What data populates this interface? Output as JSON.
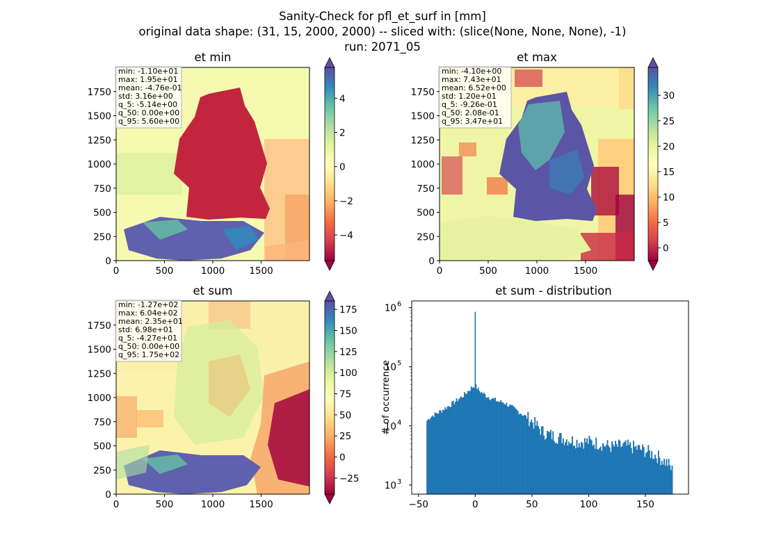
{
  "figure": {
    "title_lines": [
      "Sanity-Check for pfl_et_surf in [mm]",
      "original data shape: (31, 15, 2000, 2000) -- sliced with: (slice(None, None, None), -1)",
      "run: 2071_05"
    ]
  },
  "chart_data": [
    {
      "type": "heatmap",
      "title": "et min",
      "xlim": [
        0,
        2000
      ],
      "ylim": [
        0,
        2000
      ],
      "xticks": [
        0,
        500,
        1000,
        1500
      ],
      "yticks": [
        0,
        250,
        500,
        750,
        1000,
        1250,
        1500,
        1750
      ],
      "colormap": "Spectral",
      "colorbar": {
        "vmin": -5.5,
        "vmax": 5.8,
        "ticks": [
          -4,
          -2,
          0,
          2,
          4
        ],
        "tick_labels": [
          "−4",
          "−2",
          "0",
          "2",
          "4"
        ],
        "extend": "both"
      },
      "stats": [
        "min: -1.10e+01",
        "max: 1.95e+01",
        "mean: -4.76e-01",
        "std: 3.16e+00",
        "q_5: -5.14e+00",
        "q_50: 0.00e+00",
        "q_95: 5.60e+00"
      ]
    },
    {
      "type": "heatmap",
      "title": "et max",
      "xlim": [
        0,
        2000
      ],
      "ylim": [
        0,
        2000
      ],
      "xticks": [
        0,
        500,
        1000,
        1500
      ],
      "yticks": [
        0,
        250,
        500,
        750,
        1000,
        1250,
        1500,
        1750
      ],
      "colormap": "Spectral",
      "colorbar": {
        "vmin": -2.5,
        "vmax": 35.5,
        "ticks": [
          0,
          5,
          10,
          15,
          20,
          25,
          30
        ],
        "tick_labels": [
          "0",
          "5",
          "10",
          "15",
          "20",
          "25",
          "30"
        ],
        "extend": "both"
      },
      "stats": [
        "min: -4.10e+00",
        "max: 7.43e+01",
        "mean: 6.52e+00",
        "std: 1.20e+01",
        "q_5: -9.26e-01",
        "q_50: 2.08e-01",
        "q_95: 3.47e+01"
      ]
    },
    {
      "type": "heatmap",
      "title": "et sum",
      "xlim": [
        0,
        2000
      ],
      "ylim": [
        0,
        2000
      ],
      "xticks": [
        0,
        500,
        1000,
        1500
      ],
      "yticks": [
        0,
        250,
        500,
        750,
        1000,
        1250,
        1500,
        1750
      ],
      "colormap": "Spectral",
      "colorbar": {
        "vmin": -44,
        "vmax": 185,
        "ticks": [
          -25,
          0,
          25,
          50,
          75,
          100,
          125,
          150,
          175
        ],
        "tick_labels": [
          "−25",
          "0",
          "25",
          "50",
          "75",
          "100",
          "125",
          "150",
          "175"
        ],
        "extend": "both"
      },
      "stats": [
        "min: -1.27e+02",
        "max: 6.04e+02",
        "mean: 2.35e+01",
        "std: 6.98e+01",
        "q_5: -4.27e+01",
        "q_50: 0.00e+00",
        "q_95: 1.75e+02"
      ]
    },
    {
      "type": "bar",
      "title": "et sum - distribution",
      "ylabel": "# of occurrence",
      "xlabel": "",
      "xlim": [
        -56,
        188
      ],
      "ylim": [
        700,
        1300000
      ],
      "yscale": "log",
      "color": "#1f77b4",
      "xticks": [
        -50,
        0,
        50,
        100,
        150
      ],
      "xtick_labels": [
        "−50",
        "0",
        "50",
        "100",
        "150"
      ],
      "yticks": [
        1000,
        10000,
        100000,
        1000000
      ],
      "ytick_labels": [
        "10^3",
        "10^4",
        "10^5",
        "10^6"
      ],
      "envelope": {
        "x": [
          -43,
          -40,
          -30,
          -20,
          -10,
          -3,
          0,
          3,
          10,
          20,
          25,
          30,
          40,
          50,
          60,
          70,
          80,
          90,
          100,
          110,
          120,
          130,
          140,
          150,
          160,
          170,
          174
        ],
        "y": [
          12000,
          14000,
          18000,
          24000,
          33000,
          45000,
          48000,
          40000,
          32000,
          26000,
          25000,
          22000,
          16500,
          12000,
          7800,
          6600,
          6000,
          5400,
          5400,
          5000,
          4400,
          4600,
          4300,
          3800,
          3100,
          2300,
          1700
        ]
      },
      "spike": {
        "x": 0,
        "y": 850000
      }
    }
  ]
}
